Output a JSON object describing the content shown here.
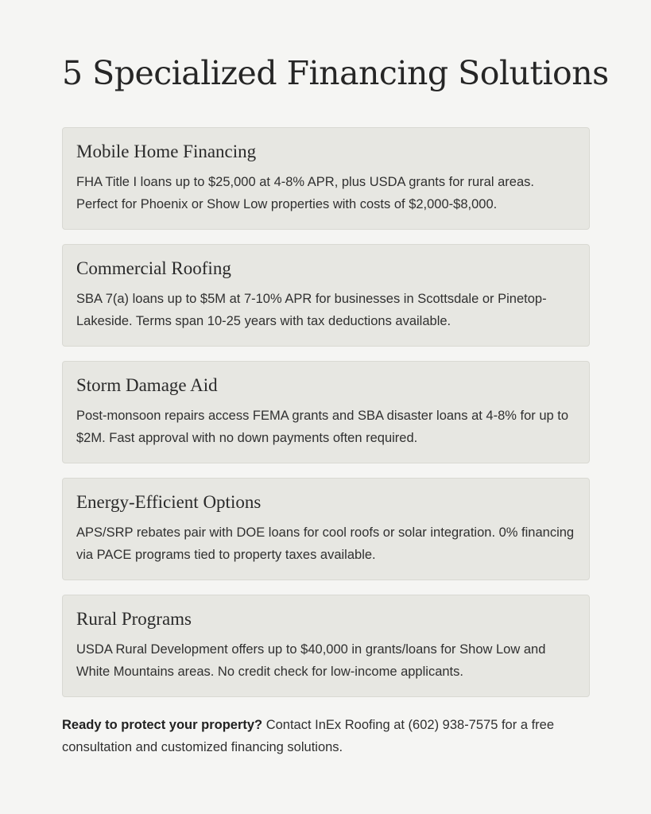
{
  "page_title": "5 Specialized Financing Solutions",
  "solutions": [
    {
      "title": "Mobile Home Financing",
      "body": "FHA Title I loans up to $25,000 at 4-8% APR, plus USDA grants for rural areas. Perfect for Phoenix or Show Low properties with costs of $2,000-$8,000."
    },
    {
      "title": "Commercial Roofing",
      "body": "SBA 7(a) loans up to $5M at 7-10% APR for businesses in Scottsdale or Pinetop-Lakeside. Terms span 10-25 years with tax deductions available."
    },
    {
      "title": "Storm Damage Aid",
      "body": "Post-monsoon repairs access FEMA grants and SBA disaster loans at 4-8% for up to $2M. Fast approval with no down payments often required."
    },
    {
      "title": "Energy-Efficient Options",
      "body": "APS/SRP rebates pair with DOE loans for cool roofs or solar integration. 0% financing via PACE programs tied to property taxes available."
    },
    {
      "title": "Rural Programs",
      "body": "USDA Rural Development offers up to $40,000 in grants/loans for Show Low and White Mountains areas. No credit check for low-income applicants."
    }
  ],
  "cta": {
    "lead": "Ready to protect your property?",
    "text": " Contact InEx Roofing at (602) 938-7575 for a free consultation and customized financing solutions."
  }
}
